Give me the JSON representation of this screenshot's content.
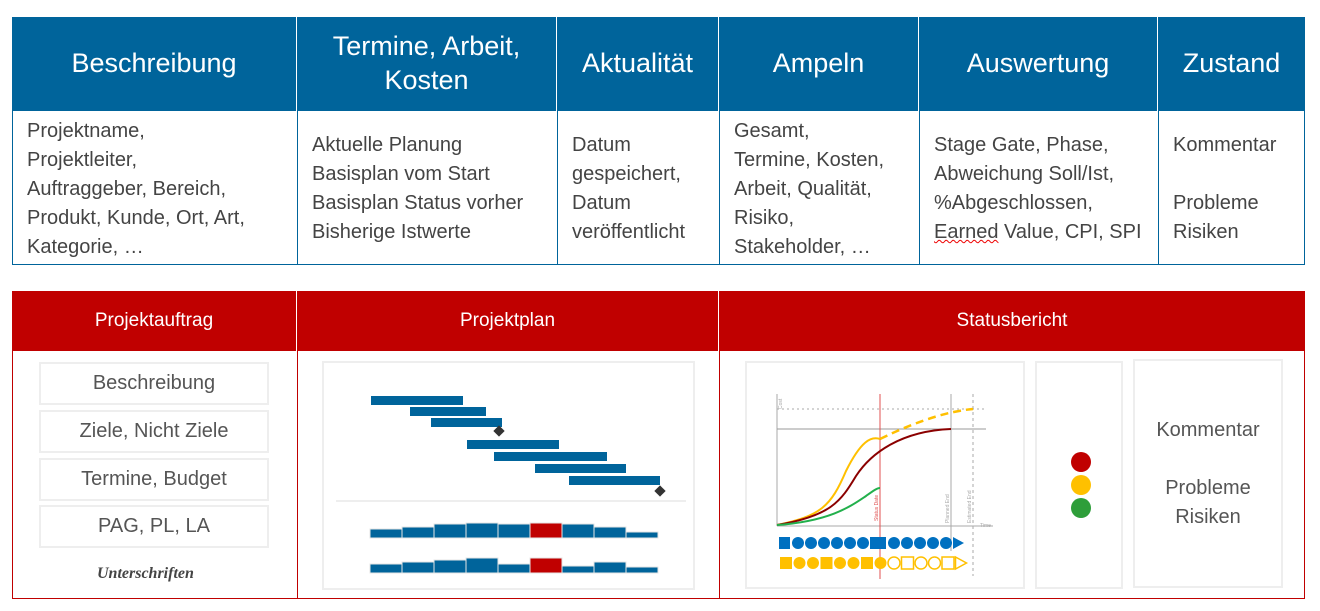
{
  "top_table": {
    "headers": [
      "Beschreibung",
      "Termine, Arbeit,\nKosten",
      "Aktualität",
      "Ampeln",
      "Auswertung",
      "Zustand"
    ],
    "cells": [
      "Projektname,\nProjektleiter,\nAuftraggeber, Bereich,\nProdukt, Kunde, Ort, Art,\nKategorie, …",
      "Aktuelle Planung\nBasisplan vom Start\nBasisplan Status vorher\nBisherige Istwerte",
      "Datum\ngespeichert,\nDatum\nveröffentlicht",
      "Gesamt,\nTermine, Kosten,\nArbeit, Qualität,\nRisiko,\nStakeholder, …",
      "Stage Gate, Phase,\nAbweichung Soll/Ist,\n%Abgeschlossen,",
      "Kommentar\n\nProbleme\nRisiken"
    ],
    "auswertung_last_word": "Earned",
    "auswertung_last_rest": " Value, CPI, SPI"
  },
  "bottom": {
    "headers": [
      "Projektauftrag",
      "Projektplan",
      "Statusbericht"
    ],
    "auftrag_items": [
      "Beschreibung",
      "Ziele, Nicht Ziele",
      "Termine, Budget",
      "PAG, PL, LA"
    ],
    "signature": "Unterschriften",
    "status_text": "Kommentar\n\nProbleme\nRisiken",
    "chart_labels": {
      "y": "Cost",
      "x": "Time",
      "status": "Status Date",
      "planned": "Planned End",
      "estimated": "Estimated End"
    },
    "traffic_light": [
      "#C00000",
      "#FFC000",
      "#2E9E3A"
    ]
  },
  "colors": {
    "blue": "#00649B",
    "red": "#C00000",
    "yellow": "#FFC000",
    "green": "#22B04C",
    "darkred": "#8B0000",
    "milestone": "#333333"
  }
}
